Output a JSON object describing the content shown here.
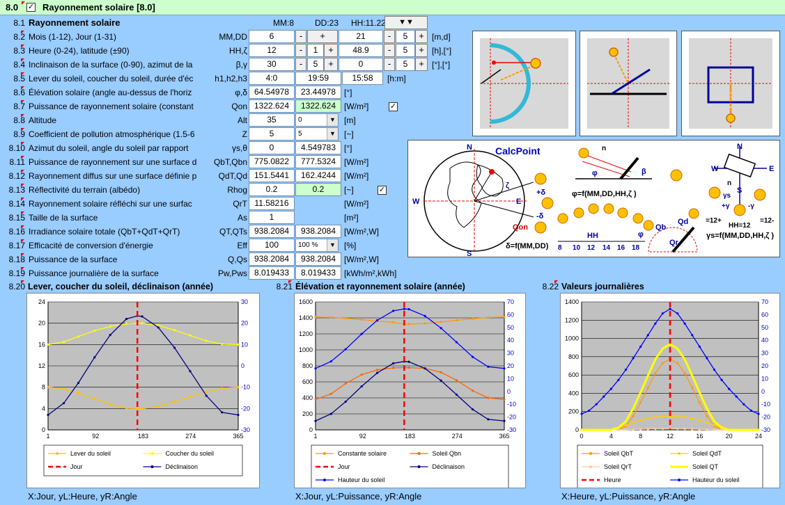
{
  "header": {
    "section": "8.0",
    "checked": "✓",
    "title": "Rayonnement solaire [8.0]"
  },
  "summary": {
    "num": "8.1",
    "label": "Rayonnement solaire",
    "mm": "MM:8",
    "dd": "DD:23",
    "hh": "HH:11.22",
    "dropdown": "▼▼"
  },
  "rows": [
    {
      "num": "8.2",
      "label": "Mois (1-12), Jour (1-31)",
      "sym": "MM,DD",
      "v1": "6",
      "v2": "21",
      "step1": "",
      "step2": "5",
      "unit": "[m,d]"
    },
    {
      "num": "8.3",
      "label": "Heure (0-24), latitude (±90)",
      "sym": "HH,ζ",
      "v1": "12",
      "v2": "48.9",
      "step1": "1",
      "step2": "5",
      "unit": "[h],[°]"
    },
    {
      "num": "8.4",
      "label": "Inclinaison de la surface (0-90), azimut de la",
      "sym": "β,γ",
      "v1": "30",
      "v2": "0",
      "step1": "5",
      "step2": "5",
      "unit": "[°],[°]"
    },
    {
      "num": "8.5",
      "label": "Lever du soleil, coucher du soleil, durée d'éc",
      "sym": "h1,h2,h3",
      "v1": "4:0",
      "v2": "19:59",
      "v3": "15:58",
      "unit": "[h:m]"
    },
    {
      "num": "8.6",
      "label": "Élévation solaire (angle au-dessus de l'horiz",
      "sym": "φ,δ",
      "v1": "64.54978",
      "v2": "23.44978",
      "unit": "[°]"
    },
    {
      "num": "8.7",
      "label": "Puissance de rayonnement solaire (constant",
      "sym": "Qon",
      "v1": "1322.624",
      "v2": "1322.624",
      "unit": "[W/m²]"
    },
    {
      "num": "8.8",
      "label": "Altitude",
      "sym": "Alt",
      "v1": "35",
      "combo": "0",
      "unit": "[m]"
    },
    {
      "num": "8.9",
      "label": "Coefficient de pollution atmosphérique (1.5-6",
      "sym": "Z",
      "v1": "5",
      "combo": "5",
      "unit": "[~]"
    },
    {
      "num": "8.10",
      "label": "Azimut du soleil, angle du soleil par rapport",
      "sym": "γs,θ",
      "v1": "0",
      "v2": "4.549783",
      "unit": "[°]"
    },
    {
      "num": "8.11",
      "label": "Puissance de rayonnement sur une surface d",
      "sym": "QbT,Qbn",
      "v1": "775.0822",
      "v2": "777.5324",
      "unit": "[W/m²]"
    },
    {
      "num": "8.12",
      "label": "Rayonnement diffus sur une surface définie p",
      "sym": "QdT,Qd",
      "v1": "151.5441",
      "v2": "162.4244",
      "unit": "[W/m²]"
    },
    {
      "num": "8.13",
      "label": "Réflectivité du terrain (albédo)",
      "sym": "Rhog",
      "v1": "0.2",
      "v2": "0.2",
      "unit": "[~]"
    },
    {
      "num": "8.14",
      "label": "Rayonnement solaire réfléchi sur une surfac",
      "sym": "QrT",
      "v1": "11.58216",
      "unit": "[W/m²]"
    },
    {
      "num": "8.15",
      "label": "Taille de la surface",
      "sym": "As",
      "v1": "1",
      "unit": "[m²]"
    },
    {
      "num": "8.16",
      "label": "Irradiance solaire totale (QbT+QdT+QrT)",
      "sym": "QT,QTs",
      "v1": "938.2084",
      "v2": "938.2084",
      "unit": "[W/m²,W]"
    },
    {
      "num": "8.17",
      "label": "Efficacité de conversion d'énergie",
      "sym": "Eff",
      "v1": "100",
      "combo": "100 %",
      "unit": "[%]"
    },
    {
      "num": "8.18",
      "label": "Puissance de la surface",
      "sym": "Q,Qs",
      "v1": "938.2084",
      "v2": "938.2084",
      "unit": "[W/m²,W]"
    },
    {
      "num": "8.19",
      "label": "Puissance journalière de la surface",
      "sym": "Pw,Pws",
      "v1": "8.019433",
      "v2": "8.019433",
      "unit": "[kWh/m²,kWh]"
    }
  ],
  "diagram": {
    "calcpoint": "CalcPoint",
    "n": "N",
    "s": "S",
    "w": "W",
    "e": "E",
    "qon": "Qon",
    "delta_eq": "δ=f(MM,DD)",
    "phi_eq": "φ=f(MM,DD,HH,ζ )",
    "gamma_eq": "γs=f(MM,DD,HH,ζ )",
    "zeta": "ζ",
    "plus_delta": "+δ",
    "minus_delta": "-δ",
    "phi": "φ",
    "beta": "β",
    "n_small": "n",
    "hh": "HH",
    "hours": [
      "8",
      "10",
      "12",
      "14",
      "16",
      "18"
    ],
    "qb": "Qb",
    "qd": "Qd",
    "qr": "Qr",
    "gamma_s": "γs",
    "plus_gamma": "+γ",
    "minus_gamma": "-γ",
    "eq12plus": "=12+",
    "hh12": "HH=12",
    "eq12minus": "=12-"
  },
  "charts": [
    {
      "num": "8.20",
      "title": "Lever, coucher du soleil, déclinaison (année)",
      "caption": "X:Jour, yL:Heure, yR:Angle",
      "chart_data": {
        "type": "line",
        "xlim": [
          1,
          365
        ],
        "xticks": [
          "1",
          "92",
          "183",
          "274",
          "365"
        ],
        "ylim_left": [
          0,
          24
        ],
        "yticks_left": [
          "0",
          "4",
          "8",
          "12",
          "16",
          "20",
          "24"
        ],
        "ylim_right": [
          -30,
          30
        ],
        "yticks_right": [
          "-30",
          "-20",
          "-10",
          "0",
          "10",
          "20",
          "30"
        ],
        "marker_x": 172,
        "series": [
          {
            "name": "Lever du soleil",
            "axis": "left",
            "color": "#ffc000",
            "x": [
              1,
              31,
              59,
              90,
              120,
              151,
              172,
              181,
              212,
              243,
              273,
              304,
              334,
              365
            ],
            "y": [
              8.0,
              7.7,
              6.9,
              5.8,
              4.8,
              4.1,
              4.0,
              4.0,
              4.4,
              5.3,
              6.2,
              7.1,
              7.8,
              8.0
            ]
          },
          {
            "name": "Coucher du soleil",
            "axis": "left",
            "color": "#ffff00",
            "x": [
              1,
              31,
              59,
              90,
              120,
              151,
              172,
              181,
              212,
              243,
              273,
              304,
              334,
              365
            ],
            "y": [
              16.0,
              16.5,
              17.5,
              18.6,
              19.4,
              19.9,
              20.0,
              20.0,
              19.6,
              18.7,
              17.7,
              16.7,
              16.1,
              16.0
            ]
          },
          {
            "name": "Déclinaison",
            "axis": "right",
            "color": "#000080",
            "x": [
              1,
              31,
              59,
              90,
              120,
              151,
              172,
              181,
              212,
              243,
              273,
              304,
              334,
              365
            ],
            "y": [
              -23.0,
              -17.5,
              -8.0,
              4.0,
              14.5,
              22.0,
              23.45,
              23.2,
              18.0,
              8.5,
              -2.5,
              -14.0,
              -21.8,
              -23.0
            ]
          }
        ],
        "legend": [
          {
            "label": "Lever du soleil",
            "color": "#ffc000",
            "style": "line"
          },
          {
            "label": "Coucher du soleil",
            "color": "#ffff00",
            "style": "line"
          },
          {
            "label": "Jour",
            "color": "#ff0000",
            "style": "dash"
          },
          {
            "label": "Déclinaison",
            "color": "#000080",
            "style": "line"
          }
        ]
      }
    },
    {
      "num": "8.21",
      "title": "Élévation et rayonnement solaire (année)",
      "caption": "X:Jour, yL:Puissance, yR:Angle",
      "chart_data": {
        "type": "line",
        "xlim": [
          1,
          365
        ],
        "xticks": [
          "1",
          "92",
          "183",
          "274",
          "365"
        ],
        "ylim_left": [
          0,
          1600
        ],
        "yticks_left": [
          "0",
          "200",
          "400",
          "600",
          "800",
          "1000",
          "1200",
          "1400",
          "1600"
        ],
        "ylim_right": [
          -30,
          70
        ],
        "yticks_right": [
          "-30",
          "-20",
          "-10",
          "0",
          "10",
          "20",
          "30",
          "40",
          "50",
          "60",
          "70"
        ],
        "marker_x": 172,
        "series": [
          {
            "name": "Constante solaire",
            "axis": "left",
            "color": "#ff9900",
            "x": [
              1,
              31,
              59,
              90,
              120,
              151,
              172,
              181,
              212,
              243,
              273,
              304,
              334,
              365
            ],
            "y": [
              1410,
              1407,
              1395,
              1378,
              1360,
              1344,
              1322,
              1323,
              1330,
              1350,
              1370,
              1390,
              1405,
              1410
            ]
          },
          {
            "name": "Soleil Qbn",
            "axis": "left",
            "color": "#ff6600",
            "x": [
              1,
              31,
              59,
              90,
              120,
              151,
              172,
              181,
              212,
              243,
              273,
              304,
              334,
              365
            ],
            "y": [
              380,
              450,
              580,
              690,
              750,
              775,
              778,
              777,
              770,
              720,
              620,
              490,
              400,
              380
            ]
          },
          {
            "name": "Déclinaison",
            "axis": "right",
            "color": "#000080",
            "x": [
              1,
              31,
              59,
              90,
              120,
              151,
              172,
              181,
              212,
              243,
              273,
              304,
              334,
              365
            ],
            "y": [
              -23.0,
              -17.5,
              -8.0,
              4.0,
              14.5,
              22.0,
              23.45,
              23.2,
              18.0,
              8.5,
              -2.5,
              -14.0,
              -21.8,
              -23.0
            ]
          },
          {
            "name": "Hauteur du soleil",
            "axis": "right",
            "color": "#0000ff",
            "x": [
              1,
              31,
              59,
              90,
              120,
              151,
              172,
              181,
              212,
              243,
              273,
              304,
              334,
              365
            ],
            "y": [
              18.0,
              23.5,
              33.0,
              45.0,
              55.6,
              63.0,
              64.5,
              64.3,
              59.0,
              49.5,
              38.5,
              27.0,
              19.3,
              18.0
            ]
          }
        ],
        "legend": [
          {
            "label": "Constante solaire",
            "color": "#ff9900",
            "style": "line"
          },
          {
            "label": "Soleil Qbn",
            "color": "#ff6600",
            "style": "line"
          },
          {
            "label": "Jour",
            "color": "#ff0000",
            "style": "dash"
          },
          {
            "label": "Déclinaison",
            "color": "#000080",
            "style": "line"
          },
          {
            "label": "Hauteur du soleil",
            "color": "#0000ff",
            "style": "line"
          }
        ]
      }
    },
    {
      "num": "8.22",
      "title": "Valeurs journalières",
      "caption": "X:Heure, yL:Puissance, yR:Angle",
      "chart_data": {
        "type": "line",
        "xlim": [
          0,
          24
        ],
        "xticks": [
          "0",
          "4",
          "8",
          "12",
          "16",
          "20",
          "24"
        ],
        "ylim_left": [
          0,
          1400
        ],
        "yticks_left": [
          "0",
          "200",
          "400",
          "600",
          "800",
          "1000",
          "1200",
          "1400"
        ],
        "ylim_right": [
          -30,
          70
        ],
        "yticks_right": [
          "-30",
          "-20",
          "-10",
          "0",
          "10",
          "20",
          "30",
          "40",
          "50",
          "60",
          "70"
        ],
        "marker_x": 12,
        "series": [
          {
            "name": "Soleil QbT",
            "axis": "left",
            "color": "#ff9900",
            "x": [
              0,
              4,
              5,
              6,
              7,
              8,
              9,
              10,
              11,
              12,
              13,
              14,
              15,
              16,
              17,
              18,
              19,
              20,
              24
            ],
            "y": [
              0,
              0,
              5,
              40,
              150,
              300,
              460,
              620,
              730,
              775,
              730,
              620,
              460,
              300,
              150,
              40,
              5,
              0,
              0
            ]
          },
          {
            "name": "Soleil QdT",
            "axis": "left",
            "color": "#ffcc00",
            "x": [
              0,
              4,
              5,
              6,
              7,
              8,
              9,
              10,
              11,
              12,
              13,
              14,
              15,
              16,
              17,
              18,
              19,
              20,
              24
            ],
            "y": [
              0,
              0,
              20,
              50,
              80,
              105,
              125,
              140,
              148,
              151,
              148,
              140,
              125,
              105,
              80,
              50,
              20,
              0,
              0
            ]
          },
          {
            "name": "Soleil QrT",
            "axis": "left",
            "color": "#ffcc99",
            "x": [
              0,
              4,
              5,
              6,
              7,
              8,
              9,
              10,
              11,
              12,
              13,
              14,
              15,
              16,
              17,
              18,
              19,
              20,
              24
            ],
            "y": [
              0,
              0,
              1,
              2,
              4,
              6,
              8,
              10,
              11,
              12,
              11,
              10,
              8,
              6,
              4,
              2,
              1,
              0,
              0
            ]
          },
          {
            "name": "Soleil QT",
            "axis": "left",
            "color": "#ffff00",
            "x": [
              0,
              4,
              5,
              6,
              7,
              8,
              9,
              10,
              11,
              12,
              13,
              14,
              15,
              16,
              17,
              18,
              19,
              20,
              24
            ],
            "y": [
              0,
              0,
              26,
              92,
              234,
              411,
              593,
              770,
              889,
              938,
              889,
              770,
              593,
              411,
              234,
              92,
              26,
              0,
              0
            ]
          },
          {
            "name": "Hauteur du soleil",
            "axis": "right",
            "color": "#0000ff",
            "x": [
              0,
              1,
              2,
              3,
              4,
              5,
              6,
              7,
              8,
              9,
              10,
              11,
              12,
              13,
              14,
              15,
              16,
              17,
              18,
              19,
              20,
              21,
              22,
              23,
              24
            ],
            "y": [
              -17.5,
              -15,
              -10,
              -4,
              2,
              9,
              17,
              26,
              35,
              44,
              53,
              61,
              64.5,
              61,
              53,
              44,
              35,
              26,
              17,
              9,
              2,
              -4,
              -10,
              -15,
              -17.5
            ]
          }
        ],
        "legend": [
          {
            "label": "Soleil QbT",
            "color": "#ff9900",
            "style": "line"
          },
          {
            "label": "Soleil QdT",
            "color": "#ffcc00",
            "style": "line"
          },
          {
            "label": "Soleil QrT",
            "color": "#ffcc99",
            "style": "line"
          },
          {
            "label": "Soleil QT",
            "color": "#ffff00",
            "style": "thick"
          },
          {
            "label": "Heure",
            "color": "#ff0000",
            "style": "dash"
          },
          {
            "label": "Hauteur du soleil",
            "color": "#0000ff",
            "style": "line"
          }
        ]
      }
    }
  ]
}
